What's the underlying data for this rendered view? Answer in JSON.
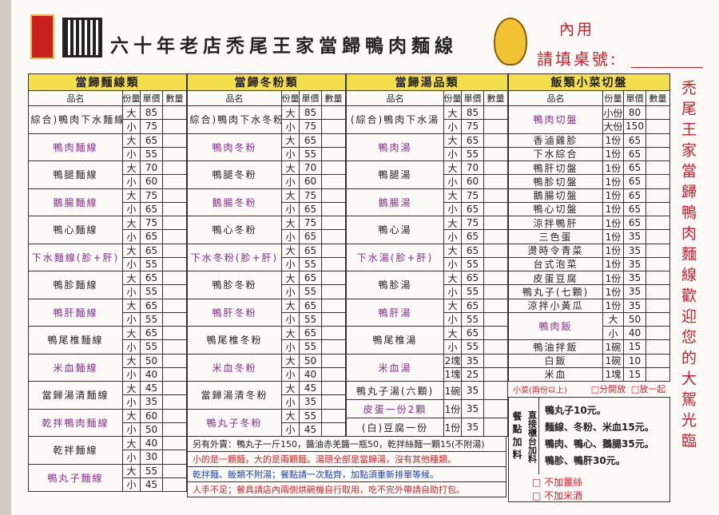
{
  "header": {
    "title": "六十年老店禿尾王家當歸鴨肉麵線",
    "dine_in": "內用",
    "table_no": "請填桌號:"
  },
  "columns": [
    "品名",
    "份量",
    "單價",
    "數量"
  ],
  "sections": [
    {
      "title": "當歸麵線類",
      "items": [
        {
          "name": "(綜合)鴨肉下水麵線",
          "options": [
            {
              "size": "大",
              "price": 85
            },
            {
              "size": "小",
              "price": 75
            }
          ]
        },
        {
          "name": "鴨肉麵線",
          "options": [
            {
              "size": "大",
              "price": 65
            },
            {
              "size": "小",
              "price": 55
            }
          ]
        },
        {
          "name": "鴨腿麵線",
          "options": [
            {
              "size": "大",
              "price": 70
            },
            {
              "size": "小",
              "price": 60
            }
          ]
        },
        {
          "name": "鵝腸麵線",
          "options": [
            {
              "size": "大",
              "price": 75
            },
            {
              "size": "小",
              "price": 65
            }
          ]
        },
        {
          "name": "鴨心麵線",
          "options": [
            {
              "size": "大",
              "price": 75
            },
            {
              "size": "小",
              "price": 65
            }
          ]
        },
        {
          "name": "下水麵線(胗+肝)",
          "options": [
            {
              "size": "大",
              "price": 65
            },
            {
              "size": "小",
              "price": 55
            }
          ]
        },
        {
          "name": "鴨胗麵線",
          "options": [
            {
              "size": "大",
              "price": 65
            },
            {
              "size": "小",
              "price": 55
            }
          ]
        },
        {
          "name": "鴨肝麵線",
          "options": [
            {
              "size": "大",
              "price": 65
            },
            {
              "size": "小",
              "price": 55
            }
          ]
        },
        {
          "name": "鴨尾椎麵線",
          "options": [
            {
              "size": "大",
              "price": 65
            },
            {
              "size": "小",
              "price": 55
            }
          ]
        },
        {
          "name": "米血麵線",
          "options": [
            {
              "size": "大",
              "price": 50
            },
            {
              "size": "小",
              "price": 40
            }
          ]
        },
        {
          "name": "當歸湯清麵線",
          "options": [
            {
              "size": "大",
              "price": 45
            },
            {
              "size": "小",
              "price": 35
            }
          ]
        },
        {
          "name": "乾拌鴨肉麵線",
          "options": [
            {
              "size": "大",
              "price": 60
            },
            {
              "size": "小",
              "price": 50
            }
          ]
        },
        {
          "name": "乾拌麵線",
          "options": [
            {
              "size": "大",
              "price": 40
            },
            {
              "size": "小",
              "price": 30
            }
          ]
        },
        {
          "name": "鴨丸子麵線",
          "options": [
            {
              "size": "大",
              "price": 55
            },
            {
              "size": "小",
              "price": 45
            }
          ]
        }
      ]
    },
    {
      "title": "當歸冬粉類",
      "items": [
        {
          "name": "(綜合)鴨肉下水冬粉",
          "options": [
            {
              "size": "大",
              "price": 85
            },
            {
              "size": "小",
              "price": 75
            }
          ]
        },
        {
          "name": "鴨肉冬粉",
          "options": [
            {
              "size": "大",
              "price": 65
            },
            {
              "size": "小",
              "price": 55
            }
          ]
        },
        {
          "name": "鴨腿冬粉",
          "options": [
            {
              "size": "大",
              "price": 70
            },
            {
              "size": "小",
              "price": 60
            }
          ]
        },
        {
          "name": "鵝腸冬粉",
          "options": [
            {
              "size": "大",
              "price": 75
            },
            {
              "size": "小",
              "price": 65
            }
          ]
        },
        {
          "name": "鴨心冬粉",
          "options": [
            {
              "size": "大",
              "price": 75
            },
            {
              "size": "小",
              "price": 65
            }
          ]
        },
        {
          "name": "下水冬粉(胗+肝)",
          "options": [
            {
              "size": "大",
              "price": 65
            },
            {
              "size": "小",
              "price": 55
            }
          ]
        },
        {
          "name": "鴨胗冬粉",
          "options": [
            {
              "size": "大",
              "price": 65
            },
            {
              "size": "小",
              "price": 55
            }
          ]
        },
        {
          "name": "鴨肝冬粉",
          "options": [
            {
              "size": "大",
              "price": 65
            },
            {
              "size": "小",
              "price": 55
            }
          ]
        },
        {
          "name": "鴨尾椎冬粉",
          "options": [
            {
              "size": "大",
              "price": 65
            },
            {
              "size": "小",
              "price": 55
            }
          ]
        },
        {
          "name": "米血冬粉",
          "options": [
            {
              "size": "大",
              "price": 50
            },
            {
              "size": "小",
              "price": 40
            }
          ]
        },
        {
          "name": "當歸湯清冬粉",
          "options": [
            {
              "size": "大",
              "price": 45
            },
            {
              "size": "小",
              "price": 35
            }
          ]
        },
        {
          "name": "鴨丸子冬粉",
          "options": [
            {
              "size": "大",
              "price": 55
            },
            {
              "size": "小",
              "price": 45
            }
          ]
        }
      ]
    },
    {
      "title": "當歸湯品類",
      "items": [
        {
          "name": "(綜合)鴨肉下水湯",
          "options": [
            {
              "size": "大",
              "price": 85
            },
            {
              "size": "小",
              "price": 75
            }
          ]
        },
        {
          "name": "鴨肉湯",
          "options": [
            {
              "size": "大",
              "price": 65
            },
            {
              "size": "小",
              "price": 55
            }
          ]
        },
        {
          "name": "鴨腿湯",
          "options": [
            {
              "size": "大",
              "price": 70
            },
            {
              "size": "小",
              "price": 60
            }
          ]
        },
        {
          "name": "鵝腸湯",
          "options": [
            {
              "size": "大",
              "price": 75
            },
            {
              "size": "小",
              "price": 65
            }
          ]
        },
        {
          "name": "鴨心湯",
          "options": [
            {
              "size": "大",
              "price": 75
            },
            {
              "size": "小",
              "price": 65
            }
          ]
        },
        {
          "name": "下水湯(胗+肝)",
          "options": [
            {
              "size": "大",
              "price": 65
            },
            {
              "size": "小",
              "price": 55
            }
          ]
        },
        {
          "name": "鴨胗湯",
          "options": [
            {
              "size": "大",
              "price": 65
            },
            {
              "size": "小",
              "price": 55
            }
          ]
        },
        {
          "name": "鴨肝湯",
          "options": [
            {
              "size": "大",
              "price": 65
            },
            {
              "size": "小",
              "price": 55
            }
          ]
        },
        {
          "name": "鴨尾椎湯",
          "options": [
            {
              "size": "大",
              "price": 65
            },
            {
              "size": "小",
              "price": 55
            }
          ]
        },
        {
          "name": "米血湯",
          "options": [
            {
              "size": "2塊",
              "price": 35
            },
            {
              "size": "1塊",
              "price": 25
            }
          ]
        },
        {
          "name": "鴨丸子湯(六顆)",
          "options": [
            {
              "size": "1碗",
              "price": 35
            }
          ]
        },
        {
          "name": "皮蛋一份2顆",
          "options": [
            {
              "size": "1份",
              "price": 35
            }
          ]
        },
        {
          "name": "(白)豆腐一份",
          "options": [
            {
              "size": "1份",
              "price": 35
            }
          ]
        }
      ]
    },
    {
      "title": "飯類小菜切盤",
      "items": [
        {
          "name": "鴨肉切盤",
          "options": [
            {
              "size": "小份",
              "price": 80
            },
            {
              "size": "大份",
              "price": 150
            }
          ]
        },
        {
          "name": "香滷雞胗",
          "options": [
            {
              "size": "1份",
              "price": 65
            }
          ]
        },
        {
          "name": "下水綜合",
          "options": [
            {
              "size": "1份",
              "price": 65
            }
          ]
        },
        {
          "name": "鴨肝切盤",
          "options": [
            {
              "size": "1份",
              "price": 65
            }
          ]
        },
        {
          "name": "鴨胗切盤",
          "options": [
            {
              "size": "1份",
              "price": 65
            }
          ]
        },
        {
          "name": "鵝腸切盤",
          "options": [
            {
              "size": "1份",
              "price": 65
            }
          ]
        },
        {
          "name": "鴨心切盤",
          "options": [
            {
              "size": "1份",
              "price": 65
            }
          ]
        },
        {
          "name": "涼拌鴨肝",
          "options": [
            {
              "size": "1份",
              "price": 65
            }
          ]
        },
        {
          "name": "三色蛋",
          "options": [
            {
              "size": "1份",
              "price": 35
            }
          ]
        },
        {
          "name": "燙時令青菜",
          "options": [
            {
              "size": "1份",
              "price": 35
            }
          ]
        },
        {
          "name": "台式泡菜",
          "options": [
            {
              "size": "1份",
              "price": 35
            }
          ]
        },
        {
          "name": "皮蛋豆腐",
          "options": [
            {
              "size": "1份",
              "price": 35
            }
          ]
        },
        {
          "name": "鴨丸子(七顆)",
          "options": [
            {
              "size": "1份",
              "price": 35
            }
          ]
        },
        {
          "name": "涼拌小黃瓜",
          "options": [
            {
              "size": "1份",
              "price": 35
            }
          ]
        },
        {
          "name": "鴨肉飯",
          "options": [
            {
              "size": "大",
              "price": 50
            },
            {
              "size": "小",
              "price": 40
            }
          ]
        },
        {
          "name": "鴨油拌飯",
          "options": [
            {
              "size": "1碗",
              "price": 15
            }
          ]
        },
        {
          "name": "白飯",
          "options": [
            {
              "size": "1碗",
              "price": 10
            }
          ]
        },
        {
          "name": "米血",
          "options": [
            {
              "size": "1塊",
              "price": 15
            }
          ]
        }
      ]
    }
  ],
  "notes": [
    "另有外賣：鴨丸子一斤150，醬油赤羌醬一瓶50，乾拌絲麵一顆15(不附湯)",
    "小的是一顆麵，大的是兩顆麵。湯頭全部是當歸湯，沒有其他種類。",
    "乾拌麵、飯類不附湯；餐點請一次點齊，加點須重新排單等候。",
    "人手不足；餐具請店內兩側烘碗機自行取用，吃不完外帶請自助打包。"
  ],
  "side_dish_note": {
    "label": "小菜(兩份以上)",
    "options": [
      "□分開放",
      "□放一起"
    ]
  },
  "add_ons": {
    "label_left": "餐點加料",
    "label_right": "直接櫃台加料",
    "items": [
      "鴨丸子10元。",
      "麵線、冬粉、米血15元。",
      "鴨肉、鴨心、鵝腸35元。",
      "鴨胗、鴨肝30元。"
    ],
    "checks": [
      "□ 不加薑絲",
      "□ 不加米酒"
    ]
  },
  "welcome": "禿尾王家當歸鴨肉麵線歡迎您的大駕光臨"
}
